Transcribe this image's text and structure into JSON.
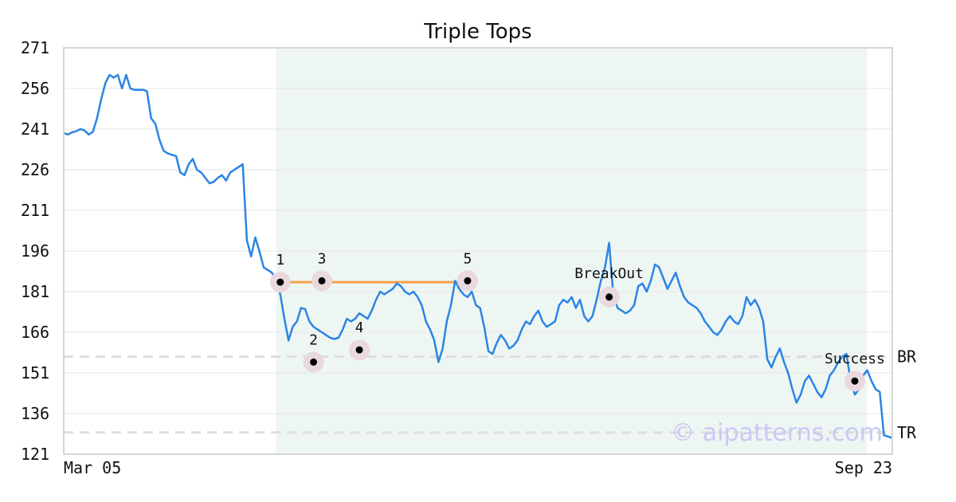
{
  "chart_data": {
    "type": "line",
    "title": "Triple Tops",
    "xlabel": "",
    "ylabel": "",
    "x_ticks": [
      "Mar 05",
      "Sep 23"
    ],
    "y_ticks": [
      121,
      136,
      151,
      166,
      181,
      196,
      211,
      226,
      241,
      256,
      271
    ],
    "ylim": [
      121,
      271
    ],
    "n_points": 200,
    "grid": "horizontal",
    "colors": {
      "line": "#2a85e4",
      "pattern_region": "#eef6f3",
      "resistance_line": "#f5a04a",
      "marker_halo": "#ead8df",
      "reference_line": "#dddddd",
      "watermark": "#c9c9f5"
    },
    "pattern_region": {
      "start_index": 52,
      "end_index": 192
    },
    "price_series": [
      239.5,
      239.0,
      239.8,
      240.2,
      241.0,
      240.5,
      239.0,
      240.0,
      245.0,
      252.0,
      258.0,
      261.0,
      260.0,
      261.0,
      256.0,
      261.0,
      256.0,
      255.5,
      255.5,
      255.5,
      255.0,
      245.0,
      243.0,
      237.0,
      233.0,
      232.0,
      231.5,
      231.0,
      225.0,
      224.0,
      228.0,
      230.0,
      226.0,
      225.0,
      223.0,
      221.0,
      221.5,
      223.0,
      224.0,
      222.0,
      225.0,
      226.0,
      227.0,
      228.0,
      200.0,
      194.0,
      201.0,
      196.0,
      190.0,
      189.0,
      188.0,
      185.0,
      180.0,
      171.0,
      163.0,
      168.0,
      170.0,
      175.0,
      174.5,
      170.0,
      168.0,
      167.0,
      166.0,
      165.0,
      164.0,
      163.5,
      164.0,
      167.0,
      171.0,
      170.0,
      171.0,
      173.0,
      172.0,
      171.0,
      174.0,
      178.0,
      181.0,
      180.0,
      181.0,
      182.0,
      184.0,
      183.0,
      181.0,
      180.0,
      181.0,
      179.0,
      176.0,
      170.0,
      167.0,
      163.0,
      155.0,
      160.0,
      170.0,
      176.0,
      185.0,
      182.0,
      180.0,
      179.0,
      181.0,
      176.0,
      175.0,
      168.0,
      159.0,
      158.0,
      162.0,
      165.0,
      163.0,
      160.0,
      161.0,
      163.0,
      167.0,
      170.0,
      169.0,
      172.0,
      174.0,
      170.0,
      168.0,
      169.0,
      170.0,
      176.0,
      178.0,
      177.0,
      179.0,
      175.0,
      178.0,
      172.0,
      170.0,
      172.0,
      178.0,
      185.0,
      190.0,
      199.0,
      180.0,
      175.0,
      174.0,
      173.0,
      174.0,
      176.0,
      183.0,
      184.0,
      181.0,
      185.0,
      191.0,
      190.0,
      186.0,
      182.0,
      185.0,
      188.0,
      183.0,
      179.0,
      177.0,
      176.0,
      175.0,
      173.0,
      170.0,
      168.0,
      166.0,
      165.0,
      167.0,
      170.0,
      172.0,
      170.0,
      169.0,
      172.0,
      179.0,
      176.0,
      178.0,
      175.0,
      170.0,
      156.0,
      153.0,
      157.0,
      160.0,
      155.0,
      151.0,
      145.0,
      140.0,
      143.0,
      148.0,
      150.0,
      147.0,
      144.0,
      142.0,
      145.0,
      150.0,
      152.0,
      155.0,
      157.0,
      158.0,
      148.0,
      143.0,
      145.0,
      150.0,
      152.0,
      148.0,
      145.0,
      144.0,
      128.0,
      127.5,
      127.0
    ],
    "resistance": {
      "value": 184.5,
      "from_point": "1",
      "to_point": "5"
    },
    "points": [
      {
        "label": "1",
        "index": 52,
        "value": 184.5
      },
      {
        "label": "2",
        "index": 60,
        "value": 155.0
      },
      {
        "label": "3",
        "index": 62,
        "value": 185.0
      },
      {
        "label": "4",
        "index": 71,
        "value": 159.5
      },
      {
        "label": "5",
        "index": 97,
        "value": 185.0
      },
      {
        "label": "BreakOut",
        "index": 131,
        "value": 179.0
      },
      {
        "label": "Success",
        "index": 190,
        "value": 148.0
      }
    ],
    "reference_lines": [
      {
        "label": "BR",
        "value": 157.0
      },
      {
        "label": "TR",
        "value": 129.0
      }
    ]
  },
  "watermark": "© aipatterns.com"
}
